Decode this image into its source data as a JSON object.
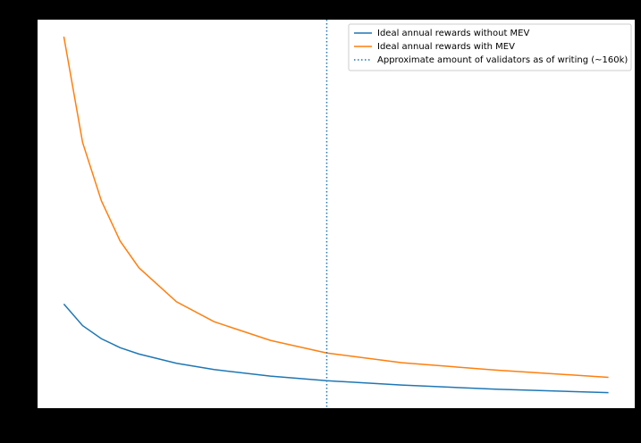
{
  "chart_data": {
    "type": "line",
    "x": [
      20000,
      30000,
      40000,
      50000,
      60000,
      80000,
      100000,
      130000,
      160000,
      200000,
      250000,
      310000
    ],
    "series": [
      {
        "name": "Ideal annual rewards without MEV",
        "color": "#1f77b4",
        "values": [
          4.89,
          4.0,
          3.46,
          3.09,
          2.83,
          2.45,
          2.19,
          1.92,
          1.73,
          1.55,
          1.38,
          1.24
        ]
      },
      {
        "name": "Ideal annual rewards with MEV",
        "color": "#ff7f0e",
        "values": [
          15.9,
          11.54,
          9.14,
          7.48,
          6.38,
          4.98,
          4.16,
          3.39,
          2.87,
          2.47,
          2.17,
          1.87
        ]
      }
    ],
    "vline": {
      "name": "Approximate amount of validators as of writing (~160k)",
      "color": "#1f77b4",
      "x": 160000
    },
    "xlim": [
      6000,
      324000
    ],
    "ylim": [
      0.6,
      16.6
    ],
    "legend": "upper right"
  }
}
